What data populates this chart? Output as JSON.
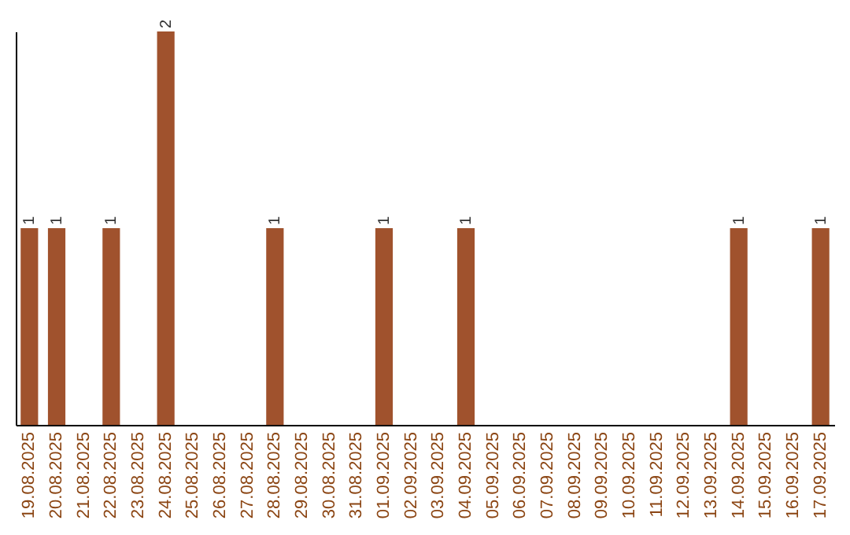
{
  "chart_data": {
    "type": "bar",
    "categories": [
      "19.08.2025",
      "20.08.2025",
      "21.08.2025",
      "22.08.2025",
      "23.08.2025",
      "24.08.2025",
      "25.08.2025",
      "26.08.2025",
      "27.08.2025",
      "28.08.2025",
      "29.08.2025",
      "30.08.2025",
      "31.08.2025",
      "01.09.2025",
      "02.09.2025",
      "03.09.2025",
      "04.09.2025",
      "05.09.2025",
      "06.09.2025",
      "07.09.2025",
      "08.09.2025",
      "09.09.2025",
      "10.09.2025",
      "11.09.2025",
      "12.09.2025",
      "13.09.2025",
      "14.09.2025",
      "15.09.2025",
      "16.09.2025",
      "17.09.2025"
    ],
    "values": [
      1,
      1,
      0,
      1,
      0,
      2,
      0,
      0,
      0,
      1,
      0,
      0,
      0,
      1,
      0,
      0,
      1,
      0,
      0,
      0,
      0,
      0,
      0,
      0,
      0,
      0,
      1,
      0,
      0,
      1
    ],
    "value_labels": [
      "1",
      "1",
      null,
      "1",
      null,
      "2",
      null,
      null,
      null,
      "1",
      null,
      null,
      null,
      "1",
      null,
      null,
      "1",
      null,
      null,
      null,
      null,
      null,
      null,
      null,
      null,
      null,
      "1",
      null,
      null,
      "1"
    ],
    "color": "#a0522d",
    "tick_labels": "x"
  }
}
